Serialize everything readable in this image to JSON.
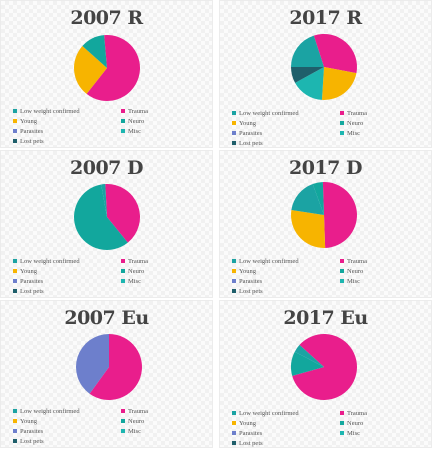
{
  "legend_categories": [
    {
      "label": "Low weight confirmed",
      "color": "#1ba3a3"
    },
    {
      "label": "Trauma",
      "color": "#e91e8c"
    },
    {
      "label": "Young",
      "color": "#f7b400"
    },
    {
      "label": "Neuro",
      "color": "#12a79d"
    },
    {
      "label": "Parasites",
      "color": "#6d7fcc"
    },
    {
      "label": "Misc",
      "color": "#1db6b0"
    },
    {
      "label": "Lost pets",
      "color": "#1f5f6b"
    }
  ],
  "chart_data": [
    {
      "type": "pie",
      "title": "2007 R",
      "slices": [
        {
          "label": "Trauma",
          "value": 62
        },
        {
          "label": "Young",
          "value": 26
        },
        {
          "label": "Neuro",
          "value": 12
        }
      ]
    },
    {
      "type": "pie",
      "title": "2017 R",
      "slices": [
        {
          "label": "Trauma",
          "value": 33
        },
        {
          "label": "Young",
          "value": 23
        },
        {
          "label": "Misc",
          "value": 16
        },
        {
          "label": "Lost pets",
          "value": 8
        },
        {
          "label": "Low weight confirmed",
          "value": 20
        }
      ]
    },
    {
      "type": "pie",
      "title": "2007 D",
      "slices": [
        {
          "label": "Trauma",
          "value": 40
        },
        {
          "label": "Neuro",
          "value": 58
        },
        {
          "label": "Low weight confirmed",
          "value": 2
        }
      ]
    },
    {
      "type": "pie",
      "title": "2017 D",
      "slices": [
        {
          "label": "Trauma",
          "value": 50
        },
        {
          "label": "Young",
          "value": 28
        },
        {
          "label": "Low weight confirmed",
          "value": 17
        },
        {
          "label": "Neuro",
          "value": 5
        }
      ]
    },
    {
      "type": "pie",
      "title": "2007 Eu",
      "slices": [
        {
          "label": "Trauma",
          "value": 60
        },
        {
          "label": "Parasites",
          "value": 40
        }
      ]
    },
    {
      "type": "pie",
      "title": "2017 Eu",
      "slices": [
        {
          "label": "Trauma",
          "value": 84
        },
        {
          "label": "Neuro",
          "value": 12
        },
        {
          "label": "Low weight confirmed",
          "value": 4
        }
      ]
    }
  ]
}
